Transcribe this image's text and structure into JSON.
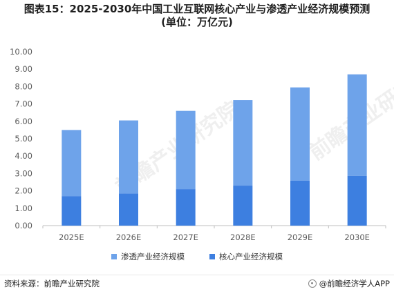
{
  "title_line1": "图表15：2025-2030年中国工业互联网核心产业与渗透产业经济规模预测",
  "title_line2": "(单位：万亿元)",
  "footer": {
    "source": "资料来源：前瞻产业研究院",
    "brand": "@前瞻经济学人APP"
  },
  "watermark": "前瞻产业研究院",
  "colors": {
    "core": "#3d7fe0",
    "penetration": "#6ea3ea",
    "axis": "#bfbfbf",
    "tick_text": "#595959"
  },
  "chart_data": {
    "type": "bar",
    "stacked": true,
    "categories": [
      "2025E",
      "2026E",
      "2027E",
      "2028E",
      "2029E",
      "2030E"
    ],
    "series": [
      {
        "name": "核心产业经济规模",
        "values": [
          1.7,
          1.85,
          2.1,
          2.3,
          2.58,
          2.87
        ]
      },
      {
        "name": "渗透产业经济规模",
        "values": [
          3.8,
          4.2,
          4.5,
          4.92,
          5.37,
          5.83
        ]
      }
    ],
    "ylim": [
      0,
      10
    ],
    "yticks": [
      "0.00",
      "1.00",
      "2.00",
      "3.00",
      "4.00",
      "5.00",
      "6.00",
      "7.00",
      "8.00",
      "9.00",
      "10.00"
    ],
    "legend": [
      "渗透产业经济规模",
      "核心产业经济规模"
    ],
    "legend_position": "bottom",
    "grid": false
  }
}
